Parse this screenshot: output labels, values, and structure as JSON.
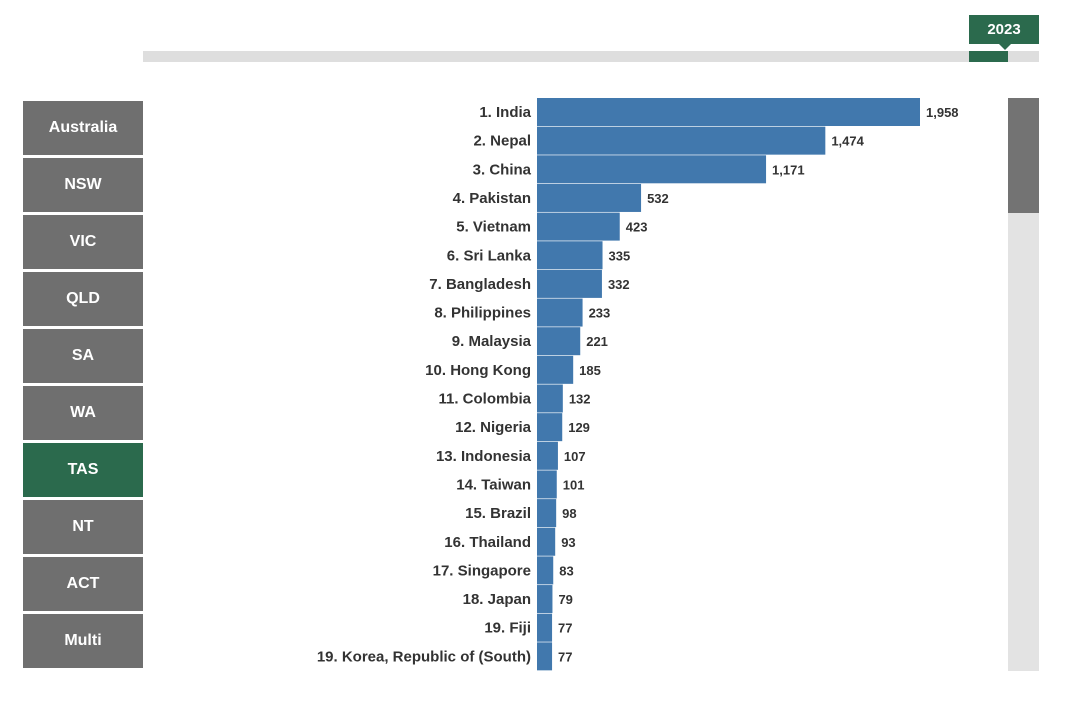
{
  "timeline": {
    "year": "2023"
  },
  "regions": [
    {
      "label": "Australia",
      "active": false
    },
    {
      "label": "NSW",
      "active": false
    },
    {
      "label": "VIC",
      "active": false
    },
    {
      "label": "QLD",
      "active": false
    },
    {
      "label": "SA",
      "active": false
    },
    {
      "label": "WA",
      "active": false
    },
    {
      "label": "TAS",
      "active": true
    },
    {
      "label": "NT",
      "active": false
    },
    {
      "label": "ACT",
      "active": false
    },
    {
      "label": "Multi",
      "active": false
    }
  ],
  "colors": {
    "bar": "#4178ad",
    "active_region": "#2b6a4d",
    "inactive_region": "#6f6f6f"
  },
  "chart_data": {
    "type": "bar",
    "orientation": "horizontal",
    "categories": [
      "1. India",
      "2. Nepal",
      "3. China",
      "4. Pakistan",
      "5. Vietnam",
      "6. Sri Lanka",
      "7. Bangladesh",
      "8. Philippines",
      "9. Malaysia",
      "10. Hong Kong",
      "11. Colombia",
      "12. Nigeria",
      "13. Indonesia",
      "14. Taiwan",
      "15. Brazil",
      "16. Thailand",
      "17. Singapore",
      "18. Japan",
      "19. Fiji",
      "19. Korea, Republic of (South)"
    ],
    "values": [
      1958,
      1474,
      1171,
      532,
      423,
      335,
      332,
      233,
      221,
      185,
      132,
      129,
      107,
      101,
      98,
      93,
      83,
      79,
      77,
      77
    ],
    "value_labels": [
      "1,958",
      "1,474",
      "1,171",
      "532",
      "423",
      "335",
      "332",
      "233",
      "221",
      "185",
      "132",
      "129",
      "107",
      "101",
      "98",
      "93",
      "83",
      "79",
      "77",
      "77"
    ],
    "xlim": [
      0,
      1958
    ],
    "grid": false,
    "legend": "none"
  }
}
